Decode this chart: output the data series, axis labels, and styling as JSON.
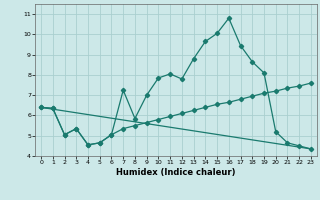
{
  "xlabel": "Humidex (Indice chaleur)",
  "bg_color": "#cce8e8",
  "grid_color": "#aacfcf",
  "line_color": "#1a7a6e",
  "xlim": [
    -0.5,
    23.5
  ],
  "ylim": [
    4.0,
    11.5
  ],
  "yticks": [
    4,
    5,
    6,
    7,
    8,
    9,
    10,
    11
  ],
  "xticks": [
    0,
    1,
    2,
    3,
    4,
    5,
    6,
    7,
    8,
    9,
    10,
    11,
    12,
    13,
    14,
    15,
    16,
    17,
    18,
    19,
    20,
    21,
    22,
    23
  ],
  "series1_x": [
    0,
    1,
    2,
    3,
    4,
    5,
    6,
    7,
    8,
    9,
    10,
    11,
    12,
    13,
    14,
    15,
    16,
    17,
    18,
    19,
    20,
    21,
    22,
    23
  ],
  "series1_y": [
    6.4,
    6.35,
    5.05,
    5.35,
    4.55,
    4.65,
    5.05,
    7.25,
    5.85,
    7.0,
    7.85,
    8.05,
    7.8,
    8.8,
    9.65,
    10.05,
    10.8,
    9.45,
    8.65,
    8.1,
    5.2,
    4.65,
    4.5,
    4.35
  ],
  "series2_x": [
    0,
    1,
    2,
    3,
    4,
    5,
    6,
    7,
    8,
    9,
    10,
    11,
    12,
    13,
    14,
    15,
    16,
    17,
    18,
    19,
    20,
    21,
    22,
    23
  ],
  "series2_y": [
    6.4,
    6.35,
    5.05,
    5.35,
    4.55,
    4.65,
    5.05,
    5.35,
    5.5,
    5.65,
    5.8,
    5.95,
    6.1,
    6.25,
    6.4,
    6.55,
    6.65,
    6.8,
    6.95,
    7.1,
    7.2,
    7.35,
    7.45,
    7.6
  ],
  "series3_x": [
    0,
    23
  ],
  "series3_y": [
    6.4,
    4.35
  ]
}
